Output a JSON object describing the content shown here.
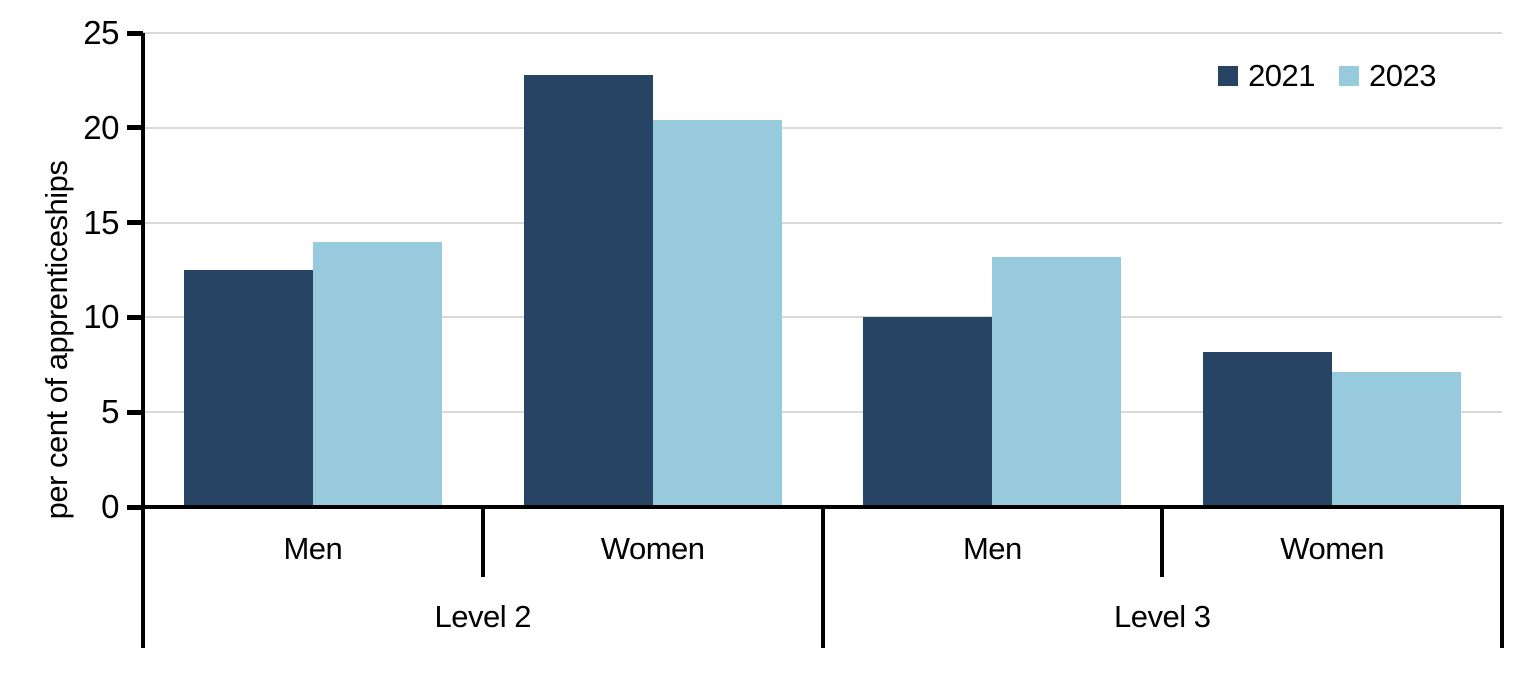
{
  "chart_data": {
    "type": "bar",
    "title": "",
    "xlabel": "",
    "ylabel": "per cent of apprenticeships",
    "ylim": [
      0,
      25
    ],
    "yticks": [
      0,
      5,
      10,
      15,
      20,
      25
    ],
    "grid": "horizontal gridlines at each y tick",
    "legend_position": "top-right inside plot",
    "groups": [
      {
        "label": "Level 2",
        "categories": [
          "Men",
          "Women"
        ]
      },
      {
        "label": "Level 3",
        "categories": [
          "Men",
          "Women"
        ]
      }
    ],
    "categories": [
      "Level 2 · Men",
      "Level 2 · Women",
      "Level 3 · Men",
      "Level 3 · Women"
    ],
    "series": [
      {
        "name": "2021",
        "color": "#284464",
        "values": [
          12.5,
          22.8,
          10.0,
          8.2
        ]
      },
      {
        "name": "2023",
        "color": "#97cadd",
        "values": [
          14.0,
          20.4,
          13.2,
          7.1
        ]
      }
    ]
  },
  "colors": {
    "series_2021": "#284464",
    "series_2023": "#97cadd",
    "gridline": "#d9d9d9",
    "axis": "#000000",
    "text": "#000000",
    "background": "#ffffff"
  }
}
